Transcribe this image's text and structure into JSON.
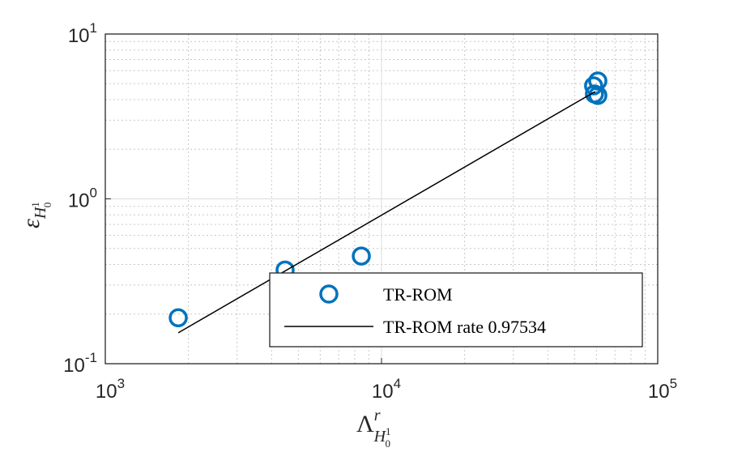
{
  "chart_data": {
    "type": "scatter",
    "xscale": "log",
    "yscale": "log",
    "xlim": [
      1000,
      100000
    ],
    "ylim": [
      0.1,
      10
    ],
    "xticks": [
      {
        "value": 1000,
        "label": "10",
        "exponent": "3"
      },
      {
        "value": 10000,
        "label": "10",
        "exponent": "4"
      },
      {
        "value": 100000,
        "label": "10",
        "exponent": "5"
      }
    ],
    "yticks": [
      {
        "value": 0.1,
        "label": "10",
        "exponent": "-1"
      },
      {
        "value": 1,
        "label": "10",
        "exponent": "0"
      },
      {
        "value": 10,
        "label": "10",
        "exponent": "1"
      }
    ],
    "grid": true,
    "minor_grid": true,
    "xlabel": {
      "symbol": "Λ",
      "sup": "r",
      "sub": "H",
      "subsub": "0",
      "subsup": "1"
    },
    "ylabel": {
      "symbol": "ε",
      "sub": "H",
      "subsub": "0",
      "subsup": "1"
    },
    "legend": "lower right",
    "series": [
      {
        "name": "TR-ROM",
        "type": "scatter",
        "color": "#0072bd",
        "x": [
          1837,
          4477,
          8450,
          60700,
          58600,
          59000,
          60700
        ],
        "values": [
          0.19,
          0.37,
          0.45,
          5.19,
          4.85,
          4.33,
          4.24
        ]
      },
      {
        "name": "TR-ROM rate 0.97534",
        "type": "line",
        "color": "#000000",
        "x": [
          1837,
          59400
        ],
        "values": [
          0.154,
          4.48
        ]
      }
    ]
  }
}
